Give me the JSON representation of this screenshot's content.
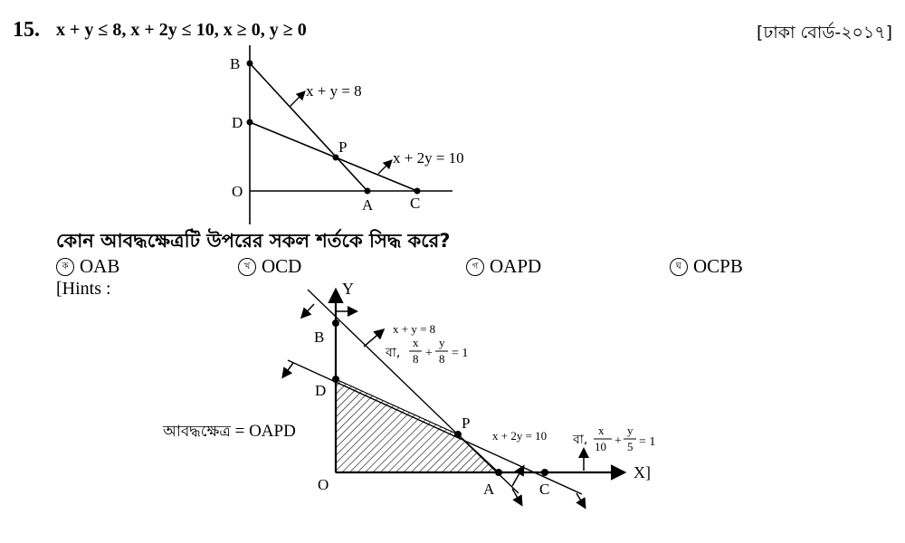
{
  "question": {
    "number": "15.",
    "constraints": "x + y ≤ 8, x + 2y ≤ 10, x ≥ 0, y ≥ 0",
    "source": "[ঢাকা বোর্ড-২০১৭]",
    "stem": "কোন আবদ্ধক্ষেত্রটি উপরের সকল শর্তকে সিদ্ধ করে?"
  },
  "figure1": {
    "points": {
      "B": "B",
      "D": "D",
      "O": "O",
      "P": "P",
      "A": "A",
      "C": "C"
    },
    "line1": "x + y = 8",
    "line2": "x + 2y = 10"
  },
  "options": [
    {
      "mark": "ক",
      "text": "OAB"
    },
    {
      "mark": "খ",
      "text": "OCD"
    },
    {
      "mark": "গ",
      "text": "OAPD"
    },
    {
      "mark": "ঘ",
      "text": "OCPB"
    }
  ],
  "hints": {
    "label": "[Hints :",
    "axis_y": "Y",
    "axis_x": "X]",
    "points": {
      "B": "B",
      "D": "D",
      "O": "O",
      "P": "P",
      "A": "A",
      "C": "C"
    },
    "line1": "x + y = 8",
    "line1_alt_prefix": "বা,",
    "line1_frac1_num": "x",
    "line1_frac1_den": "8",
    "line1_frac2_num": "y",
    "line1_frac2_den": "8",
    "line1_rhs": "= 1",
    "line2": "x + 2y = 10",
    "line2_alt_prefix": "বা,",
    "line2_frac1_num": "x",
    "line2_frac1_den": "10",
    "line2_frac2_num": "y",
    "line2_frac2_den": "5",
    "line2_rhs": "= 1",
    "plus": "+",
    "region_prefix": "আবদ্ধক্ষেত্র",
    "region_value": "= OAPD"
  }
}
